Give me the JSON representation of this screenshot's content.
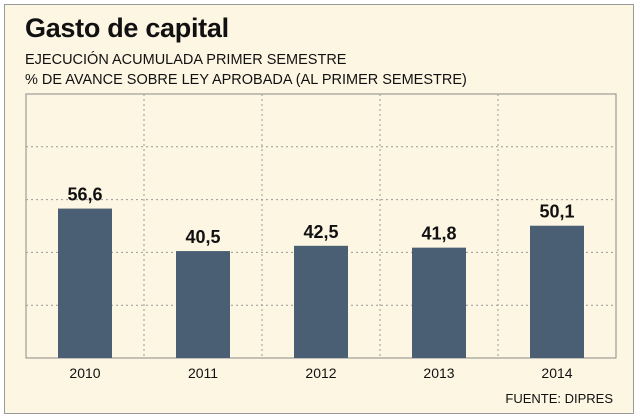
{
  "chart_data": {
    "type": "bar",
    "title": "Gasto de capital",
    "subtitle": "EJECUCIÓN ACUMULADA PRIMER SEMESTRE",
    "ylabel": "% DE AVANCE SOBRE LEY APROBADA (AL PRIMER SEMESTRE)",
    "xlabel": "",
    "categories": [
      "2010",
      "2011",
      "2012",
      "2013",
      "2014"
    ],
    "values": [
      56.6,
      40.5,
      42.5,
      41.8,
      50.1
    ],
    "value_labels": [
      "56,6",
      "40,5",
      "42,5",
      "41,8",
      "50,1"
    ],
    "ylim": [
      0,
      100
    ],
    "grid": true,
    "bar_color": "#4a5f73",
    "source": "FUENTE: DIPRES"
  }
}
